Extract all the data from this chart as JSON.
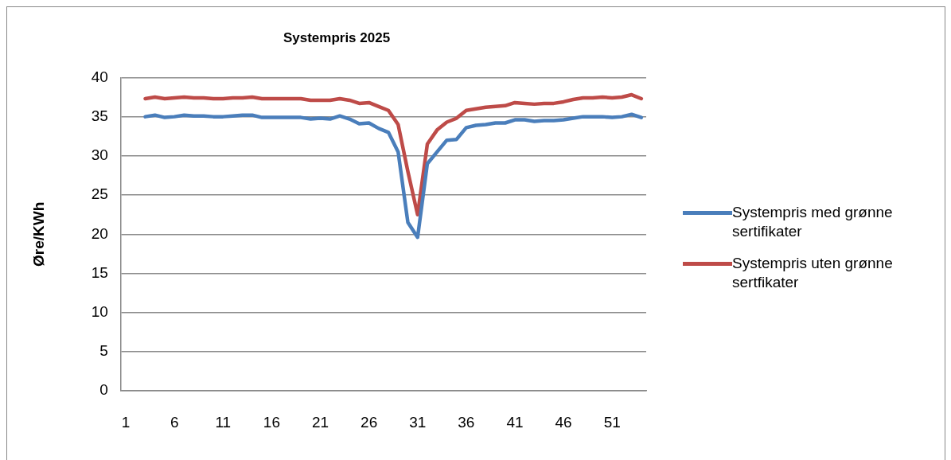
{
  "chart_data": {
    "type": "line",
    "title": "Systempris 2025",
    "ylabel": "Øre/KWh",
    "x": [
      3,
      4,
      5,
      6,
      7,
      8,
      9,
      10,
      11,
      12,
      13,
      14,
      15,
      16,
      17,
      18,
      19,
      20,
      21,
      22,
      23,
      24,
      25,
      26,
      27,
      28,
      29,
      30,
      31,
      32,
      33,
      34,
      35,
      36,
      37,
      38,
      39,
      40,
      41,
      42,
      43,
      44,
      45,
      46,
      47,
      48,
      49,
      50,
      51,
      52,
      53,
      54
    ],
    "xlim": [
      0.5,
      54.5
    ],
    "xticks": [
      1,
      6,
      11,
      16,
      21,
      26,
      31,
      36,
      41,
      46,
      51
    ],
    "series": [
      {
        "name": "Systempris med grønne sertifikater",
        "color": "#4a7ebb",
        "values": [
          35.0,
          35.2,
          34.9,
          35.0,
          35.2,
          35.1,
          35.1,
          35.0,
          35.0,
          35.1,
          35.2,
          35.2,
          34.9,
          34.9,
          34.9,
          34.9,
          34.9,
          34.7,
          34.8,
          34.7,
          35.1,
          34.7,
          34.1,
          34.2,
          33.5,
          33.0,
          30.5,
          21.5,
          19.6,
          29.0,
          30.5,
          32.0,
          32.1,
          33.6,
          33.9,
          34.0,
          34.2,
          34.2,
          34.6,
          34.6,
          34.4,
          34.5,
          34.5,
          34.6,
          34.8,
          35.0,
          35.0,
          35.0,
          34.9,
          35.0,
          35.3,
          34.9
        ]
      },
      {
        "name": "Systempris uten grønne sertfikater",
        "color": "#be4b48",
        "values": [
          37.3,
          37.5,
          37.3,
          37.4,
          37.5,
          37.4,
          37.4,
          37.3,
          37.3,
          37.4,
          37.4,
          37.5,
          37.3,
          37.3,
          37.3,
          37.3,
          37.3,
          37.1,
          37.1,
          37.1,
          37.3,
          37.1,
          36.7,
          36.8,
          36.3,
          35.8,
          34.0,
          28.0,
          22.5,
          31.5,
          33.3,
          34.3,
          34.8,
          35.8,
          36.0,
          36.2,
          36.3,
          36.4,
          36.8,
          36.7,
          36.6,
          36.7,
          36.7,
          36.9,
          37.2,
          37.4,
          37.4,
          37.5,
          37.4,
          37.5,
          37.8,
          37.3
        ]
      }
    ],
    "ylim": [
      0,
      40
    ],
    "yticks": [
      0,
      5,
      10,
      15,
      20,
      25,
      30,
      35,
      40
    ],
    "grid": "y",
    "legend": "right",
    "marker": "none",
    "line_style": "solid"
  }
}
